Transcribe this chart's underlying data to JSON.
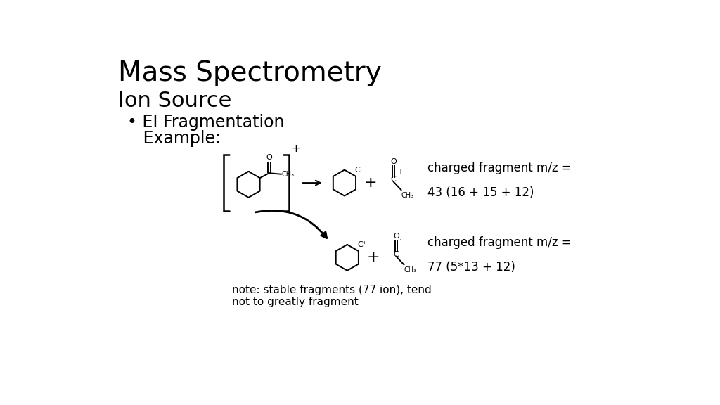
{
  "title": "Mass Spectrometry",
  "subtitle": "Ion Source",
  "bullet_line1": "• EI Fragmentation",
  "bullet_line2": "   Example:",
  "background_color": "#ffffff",
  "text_color": "#000000",
  "title_fontsize": 28,
  "subtitle_fontsize": 22,
  "bullet_fontsize": 17,
  "annotation1_line1": "charged fragment m/z =",
  "annotation1_line2": "43 (16 + 15 + 12)",
  "annotation2_line1": "charged fragment m/z =",
  "annotation2_line2": "77 (5*13 + 12)",
  "note_line1": "note: stable fragments (77 ion), tend",
  "note_line2": "not to greatly fragment",
  "note_fontsize": 11,
  "annot_fontsize": 12
}
